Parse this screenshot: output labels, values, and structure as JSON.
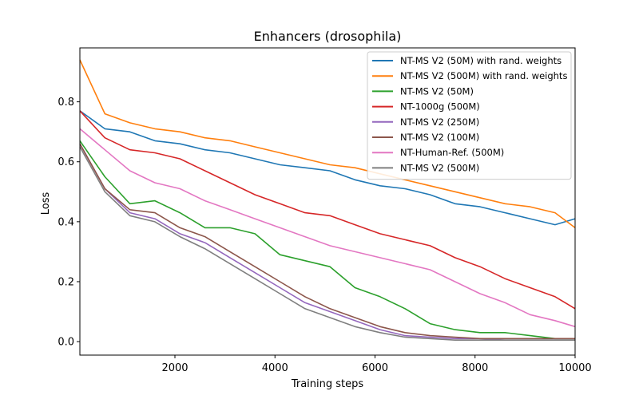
{
  "chart_data": {
    "type": "line",
    "title": "Enhancers (drosophila)",
    "xlabel": "Training steps",
    "ylabel": "Loss",
    "xlim": [
      100,
      10000
    ],
    "ylim": [
      -0.045,
      0.98
    ],
    "xticks": [
      2000,
      4000,
      6000,
      8000,
      10000
    ],
    "yticks": [
      0.0,
      0.2,
      0.4,
      0.6,
      0.8
    ],
    "legend_position": "top-right",
    "x": [
      100,
      600,
      1100,
      1600,
      2100,
      2600,
      3100,
      3600,
      4100,
      4600,
      5100,
      5600,
      6100,
      6600,
      7100,
      7600,
      8100,
      8600,
      9100,
      9600,
      10000
    ],
    "series": [
      {
        "name": "NT-MS V2 (50M) with rand. weights",
        "color": "#1f77b4",
        "values": [
          0.77,
          0.71,
          0.7,
          0.67,
          0.66,
          0.64,
          0.63,
          0.61,
          0.59,
          0.58,
          0.57,
          0.54,
          0.52,
          0.51,
          0.49,
          0.46,
          0.45,
          0.43,
          0.41,
          0.39,
          0.41
        ]
      },
      {
        "name": "NT-MS V2 (500M) with rand. weights",
        "color": "#ff7f0e",
        "values": [
          0.94,
          0.76,
          0.73,
          0.71,
          0.7,
          0.68,
          0.67,
          0.65,
          0.63,
          0.61,
          0.59,
          0.58,
          0.56,
          0.54,
          0.52,
          0.5,
          0.48,
          0.46,
          0.45,
          0.43,
          0.38
        ]
      },
      {
        "name": "NT-MS V2 (50M)",
        "color": "#2ca02c",
        "values": [
          0.67,
          0.55,
          0.46,
          0.47,
          0.43,
          0.38,
          0.38,
          0.36,
          0.29,
          0.27,
          0.25,
          0.18,
          0.15,
          0.11,
          0.06,
          0.04,
          0.03,
          0.03,
          0.02,
          0.01,
          0.01
        ]
      },
      {
        "name": "NT-1000g (500M)",
        "color": "#d62728",
        "values": [
          0.77,
          0.68,
          0.64,
          0.63,
          0.61,
          0.57,
          0.53,
          0.49,
          0.46,
          0.43,
          0.42,
          0.39,
          0.36,
          0.34,
          0.32,
          0.28,
          0.25,
          0.21,
          0.18,
          0.15,
          0.11
        ]
      },
      {
        "name": "NT-MS V2 (250M)",
        "color": "#9467bd",
        "values": [
          0.66,
          0.51,
          0.43,
          0.41,
          0.36,
          0.33,
          0.28,
          0.23,
          0.18,
          0.13,
          0.1,
          0.07,
          0.04,
          0.02,
          0.015,
          0.01,
          0.01,
          0.005,
          0.005,
          0.005,
          0.005
        ]
      },
      {
        "name": "NT-MS V2 (100M)",
        "color": "#8c564b",
        "values": [
          0.66,
          0.51,
          0.44,
          0.43,
          0.38,
          0.35,
          0.3,
          0.25,
          0.2,
          0.15,
          0.11,
          0.08,
          0.05,
          0.03,
          0.02,
          0.015,
          0.01,
          0.01,
          0.01,
          0.01,
          0.01
        ]
      },
      {
        "name": "NT-Human-Ref. (500M)",
        "color": "#e377c2",
        "values": [
          0.71,
          0.64,
          0.57,
          0.53,
          0.51,
          0.47,
          0.44,
          0.41,
          0.38,
          0.35,
          0.32,
          0.3,
          0.28,
          0.26,
          0.24,
          0.2,
          0.16,
          0.13,
          0.09,
          0.07,
          0.05
        ]
      },
      {
        "name": "NT-MS V2 (500M)",
        "color": "#7f7f7f",
        "values": [
          0.65,
          0.5,
          0.42,
          0.4,
          0.35,
          0.31,
          0.26,
          0.21,
          0.16,
          0.11,
          0.08,
          0.05,
          0.03,
          0.015,
          0.01,
          0.005,
          0.005,
          0.005,
          0.005,
          0.005,
          0.005
        ]
      }
    ]
  }
}
